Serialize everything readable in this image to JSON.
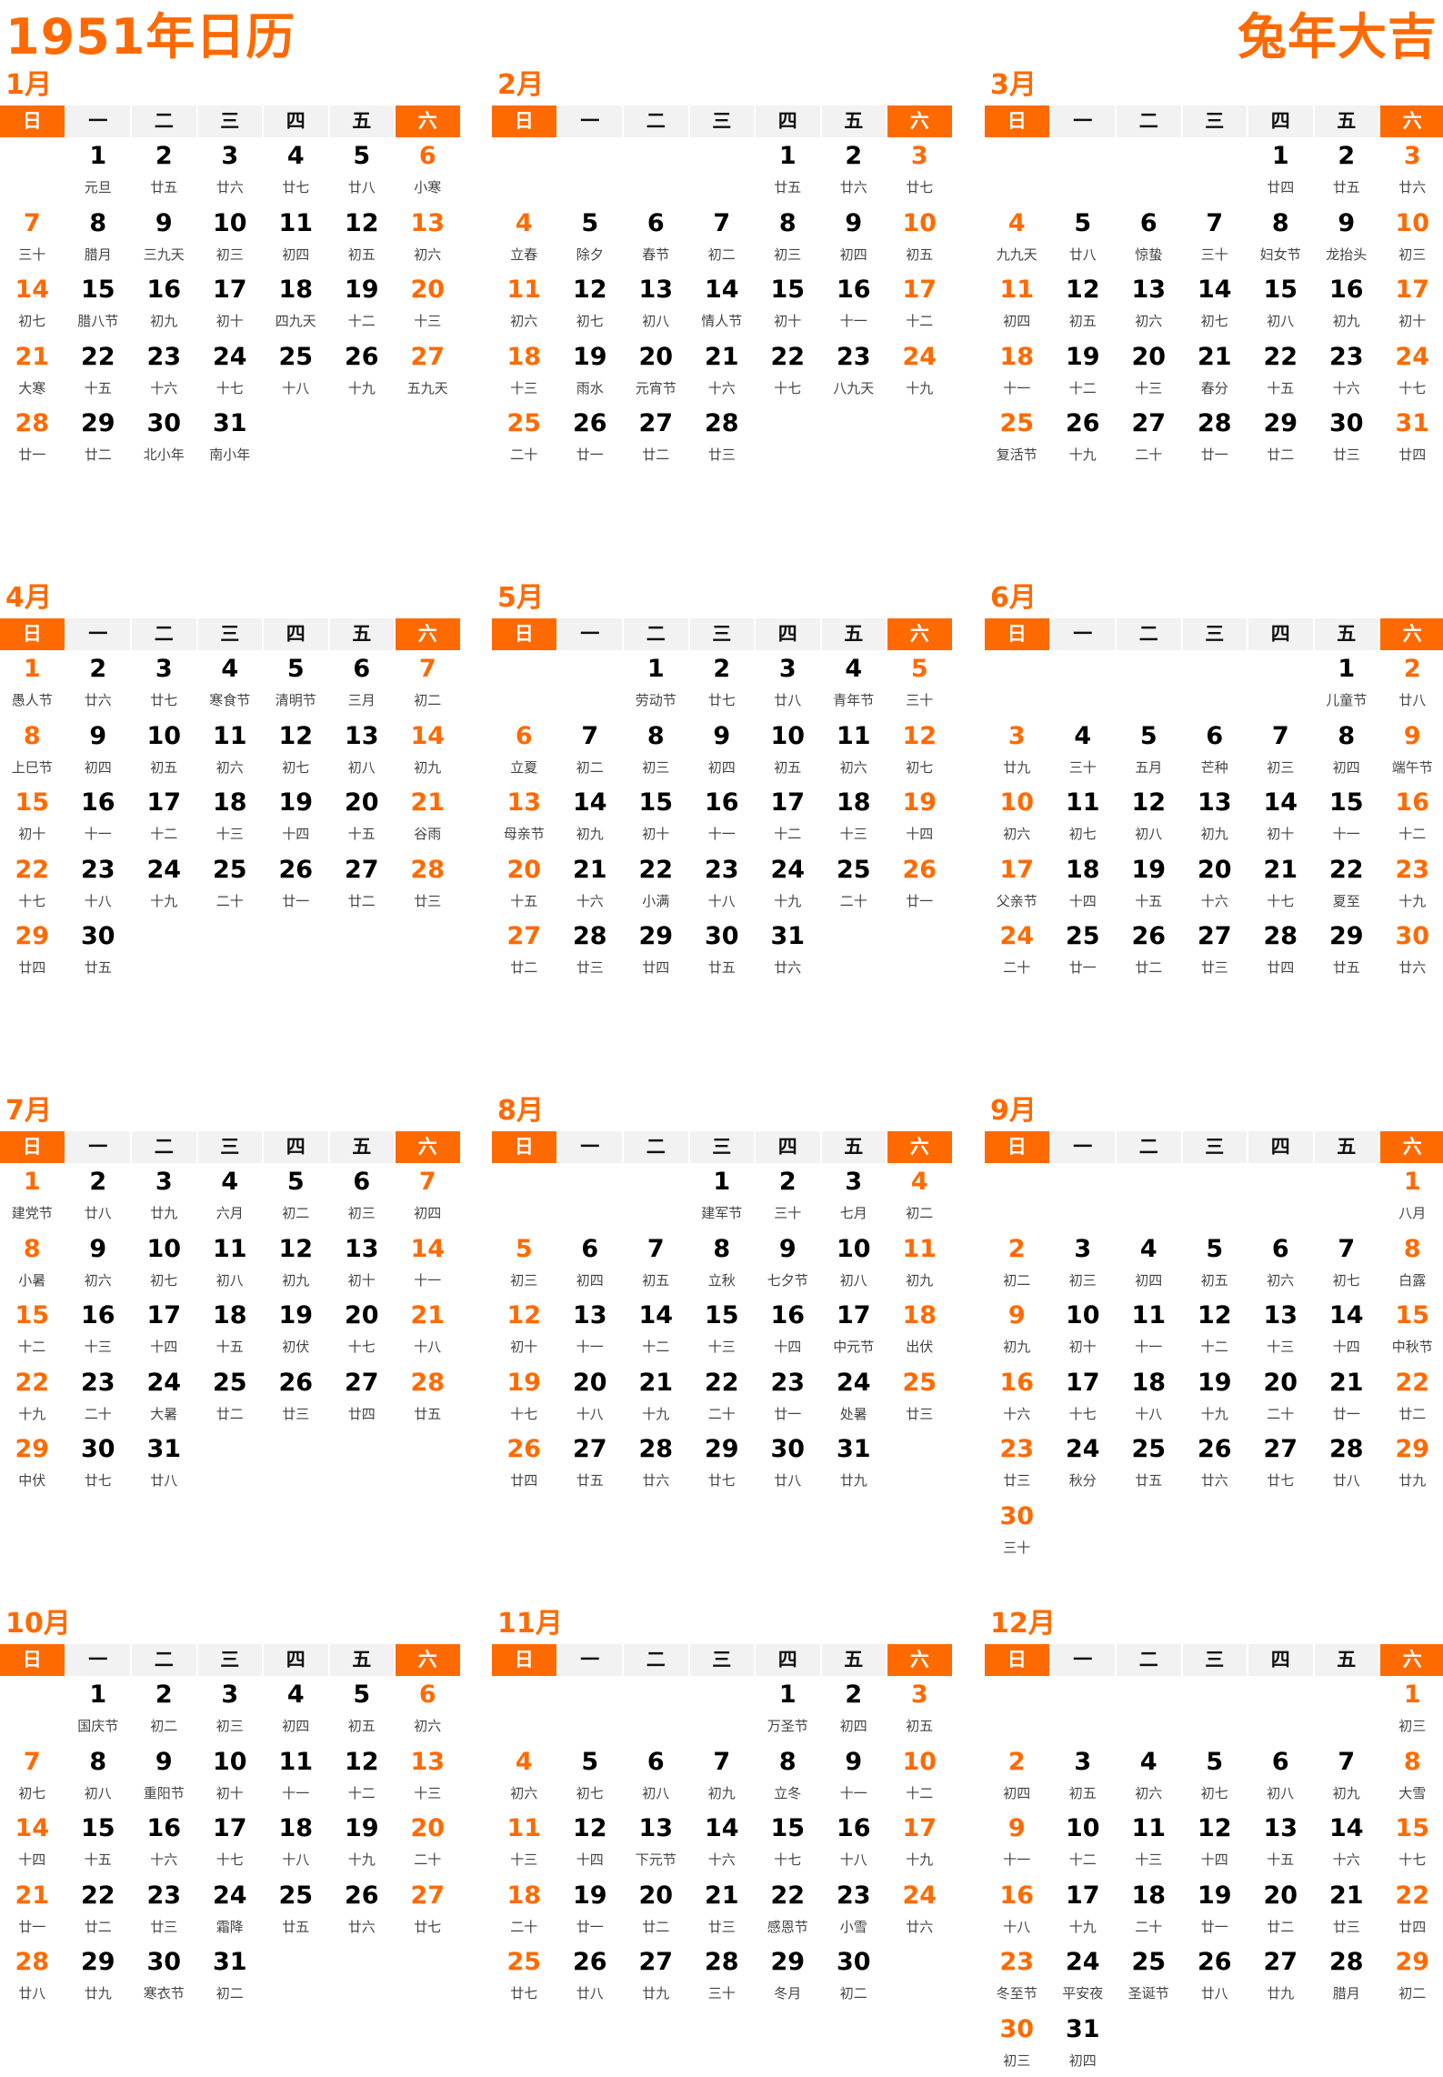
{
  "title": "1951年日历",
  "slogan": "兔年大吉",
  "accent_color": "#ff6a00",
  "weekdays": [
    "日",
    "一",
    "二",
    "三",
    "四",
    "五",
    "六"
  ],
  "months": [
    {
      "name": "1月",
      "first_weekday": 1,
      "lunar": [
        "元旦",
        "廿五",
        "廿六",
        "廿七",
        "廿八",
        "小寒",
        "三十",
        "腊月",
        "三九天",
        "初三",
        "初四",
        "初五",
        "初六",
        "初七",
        "腊八节",
        "初九",
        "初十",
        "四九天",
        "十二",
        "十三",
        "大寒",
        "十五",
        "十六",
        "十七",
        "十八",
        "十九",
        "五九天",
        "廿一",
        "廿二",
        "北小年",
        "南小年"
      ]
    },
    {
      "name": "2月",
      "first_weekday": 4,
      "lunar": [
        "廿五",
        "廿六",
        "廿七",
        "立春",
        "除夕",
        "春节",
        "初二",
        "初三",
        "初四",
        "初五",
        "初六",
        "初七",
        "初八",
        "情人节",
        "初十",
        "十一",
        "十二",
        "十三",
        "雨水",
        "元宵节",
        "十六",
        "十七",
        "八九天",
        "十九",
        "二十",
        "廿一",
        "廿二",
        "廿三"
      ]
    },
    {
      "name": "3月",
      "first_weekday": 4,
      "lunar": [
        "廿四",
        "廿五",
        "廿六",
        "九九天",
        "廿八",
        "惊蛰",
        "三十",
        "妇女节",
        "龙抬头",
        "初三",
        "初四",
        "初五",
        "初六",
        "初七",
        "初八",
        "初九",
        "初十",
        "十一",
        "十二",
        "十三",
        "春分",
        "十五",
        "十六",
        "十七",
        "复活节",
        "十九",
        "二十",
        "廿一",
        "廿二",
        "廿三",
        "廿四"
      ]
    },
    {
      "name": "4月",
      "first_weekday": 0,
      "lunar": [
        "愚人节",
        "廿六",
        "廿七",
        "寒食节",
        "清明节",
        "三月",
        "初二",
        "上巳节",
        "初四",
        "初五",
        "初六",
        "初七",
        "初八",
        "初九",
        "初十",
        "十一",
        "十二",
        "十三",
        "十四",
        "十五",
        "谷雨",
        "十七",
        "十八",
        "十九",
        "二十",
        "廿一",
        "廿二",
        "廿三",
        "廿四",
        "廿五"
      ]
    },
    {
      "name": "5月",
      "first_weekday": 2,
      "lunar": [
        "劳动节",
        "廿七",
        "廿八",
        "青年节",
        "三十",
        "立夏",
        "初二",
        "初三",
        "初四",
        "初五",
        "初六",
        "初七",
        "母亲节",
        "初九",
        "初十",
        "十一",
        "十二",
        "十三",
        "十四",
        "十五",
        "十六",
        "小满",
        "十八",
        "十九",
        "二十",
        "廿一",
        "廿二",
        "廿三",
        "廿四",
        "廿五",
        "廿六"
      ]
    },
    {
      "name": "6月",
      "first_weekday": 5,
      "lunar": [
        "儿童节",
        "廿八",
        "廿九",
        "三十",
        "五月",
        "芒种",
        "初三",
        "初四",
        "端午节",
        "初六",
        "初七",
        "初八",
        "初九",
        "初十",
        "十一",
        "十二",
        "父亲节",
        "十四",
        "十五",
        "十六",
        "十七",
        "夏至",
        "十九",
        "二十",
        "廿一",
        "廿二",
        "廿三",
        "廿四",
        "廿五",
        "廿六"
      ]
    },
    {
      "name": "7月",
      "first_weekday": 0,
      "lunar": [
        "建党节",
        "廿八",
        "廿九",
        "六月",
        "初二",
        "初三",
        "初四",
        "小暑",
        "初六",
        "初七",
        "初八",
        "初九",
        "初十",
        "十一",
        "十二",
        "十三",
        "十四",
        "十五",
        "初伏",
        "十七",
        "十八",
        "十九",
        "二十",
        "大暑",
        "廿二",
        "廿三",
        "廿四",
        "廿五",
        "中伏",
        "廿七",
        "廿八"
      ]
    },
    {
      "name": "8月",
      "first_weekday": 3,
      "lunar": [
        "建军节",
        "三十",
        "七月",
        "初二",
        "初三",
        "初四",
        "初五",
        "立秋",
        "七夕节",
        "初八",
        "初九",
        "初十",
        "十一",
        "十二",
        "十三",
        "十四",
        "中元节",
        "出伏",
        "十七",
        "十八",
        "十九",
        "二十",
        "廿一",
        "处暑",
        "廿三",
        "廿四",
        "廿五",
        "廿六",
        "廿七",
        "廿八",
        "廿九"
      ]
    },
    {
      "name": "9月",
      "first_weekday": 6,
      "lunar": [
        "八月",
        "初二",
        "初三",
        "初四",
        "初五",
        "初六",
        "初七",
        "白露",
        "初九",
        "初十",
        "十一",
        "十二",
        "十三",
        "十四",
        "中秋节",
        "十六",
        "十七",
        "十八",
        "十九",
        "二十",
        "廿一",
        "廿二",
        "廿三",
        "秋分",
        "廿五",
        "廿六",
        "廿七",
        "廿八",
        "廿九",
        "三十"
      ]
    },
    {
      "name": "10月",
      "first_weekday": 1,
      "lunar": [
        "国庆节",
        "初二",
        "初三",
        "初四",
        "初五",
        "初六",
        "初七",
        "初八",
        "重阳节",
        "初十",
        "十一",
        "十二",
        "十三",
        "十四",
        "十五",
        "十六",
        "十七",
        "十八",
        "十九",
        "二十",
        "廿一",
        "廿二",
        "廿三",
        "霜降",
        "廿五",
        "廿六",
        "廿七",
        "廿八",
        "廿九",
        "寒衣节",
        "初二"
      ]
    },
    {
      "name": "11月",
      "first_weekday": 4,
      "lunar": [
        "万圣节",
        "初四",
        "初五",
        "初六",
        "初七",
        "初八",
        "初九",
        "立冬",
        "十一",
        "十二",
        "十三",
        "十四",
        "下元节",
        "十六",
        "十七",
        "十八",
        "十九",
        "二十",
        "廿一",
        "廿二",
        "廿三",
        "感恩节",
        "小雪",
        "廿六",
        "廿七",
        "廿八",
        "廿九",
        "三十",
        "冬月",
        "初二"
      ]
    },
    {
      "name": "12月",
      "first_weekday": 6,
      "lunar": [
        "初三",
        "初四",
        "初五",
        "初六",
        "初七",
        "初八",
        "初九",
        "大雪",
        "十一",
        "十二",
        "十三",
        "十四",
        "十五",
        "十六",
        "十七",
        "十八",
        "十九",
        "二十",
        "廿一",
        "廿二",
        "廿三",
        "廿四",
        "冬至节",
        "平安夜",
        "圣诞节",
        "廿八",
        "廿九",
        "腊月",
        "初二",
        "初三",
        "初四"
      ]
    }
  ]
}
